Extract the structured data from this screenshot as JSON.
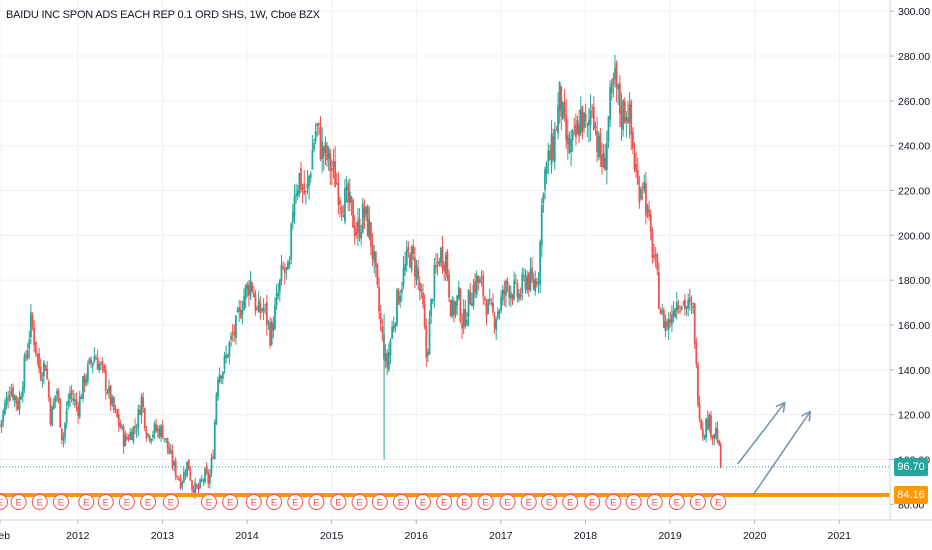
{
  "chart_data": {
    "type": "candlestick",
    "title": "BAIDU INC SPON ADS EACH REP 0.1 ORD SHS, 1W, Cboe BZX",
    "x_ticks": [
      "Feb",
      "2012",
      "2013",
      "2014",
      "2015",
      "2016",
      "2017",
      "2018",
      "2019",
      "2020",
      "2021"
    ],
    "y_ticks": [
      80,
      100,
      120,
      140,
      160,
      180,
      200,
      220,
      240,
      260,
      280,
      300
    ],
    "y_tick_labels": [
      "80.00",
      "100.00",
      "120.00",
      "140.00",
      "160.00",
      "180.00",
      "200.00",
      "220.00",
      "240.00",
      "260.00",
      "280.00",
      "300.00"
    ],
    "ylim": [
      73,
      305
    ],
    "xlim_years": [
      2011.08,
      2021.6
    ],
    "up_color": "#26a69a",
    "down_color": "#ef5350",
    "grid": true,
    "price_path": [
      [
        2011.08,
        115
      ],
      [
        2011.2,
        133
      ],
      [
        2011.3,
        124
      ],
      [
        2011.45,
        162
      ],
      [
        2011.55,
        139
      ],
      [
        2011.62,
        143
      ],
      [
        2011.68,
        118
      ],
      [
        2011.75,
        132
      ],
      [
        2011.82,
        108
      ],
      [
        2011.9,
        130
      ],
      [
        2012.0,
        123
      ],
      [
        2012.08,
        136
      ],
      [
        2012.2,
        147
      ],
      [
        2012.3,
        138
      ],
      [
        2012.42,
        122
      ],
      [
        2012.5,
        115
      ],
      [
        2012.55,
        108
      ],
      [
        2012.7,
        116
      ],
      [
        2012.75,
        128
      ],
      [
        2012.82,
        111
      ],
      [
        2012.9,
        113
      ],
      [
        2013.0,
        113
      ],
      [
        2013.08,
        103
      ],
      [
        2013.15,
        95
      ],
      [
        2013.22,
        90
      ],
      [
        2013.3,
        99
      ],
      [
        2013.35,
        88
      ],
      [
        2013.42,
        86
      ],
      [
        2013.5,
        93
      ],
      [
        2013.55,
        90
      ],
      [
        2013.6,
        104
      ],
      [
        2013.65,
        139
      ],
      [
        2013.72,
        141
      ],
      [
        2013.8,
        152
      ],
      [
        2013.88,
        160
      ],
      [
        2013.95,
        172
      ],
      [
        2014.05,
        180
      ],
      [
        2014.12,
        165
      ],
      [
        2014.2,
        168
      ],
      [
        2014.28,
        155
      ],
      [
        2014.35,
        170
      ],
      [
        2014.42,
        184
      ],
      [
        2014.5,
        182
      ],
      [
        2014.55,
        220
      ],
      [
        2014.62,
        226
      ],
      [
        2014.7,
        216
      ],
      [
        2014.78,
        240
      ],
      [
        2014.82,
        249
      ],
      [
        2014.88,
        238
      ],
      [
        2014.95,
        234
      ],
      [
        2015.05,
        225
      ],
      [
        2015.12,
        216
      ],
      [
        2015.2,
        214
      ],
      [
        2015.3,
        201
      ],
      [
        2015.38,
        210
      ],
      [
        2015.45,
        202
      ],
      [
        2015.5,
        188
      ],
      [
        2015.58,
        159
      ],
      [
        2015.65,
        140
      ],
      [
        2015.7,
        155
      ],
      [
        2015.78,
        172
      ],
      [
        2015.85,
        183
      ],
      [
        2015.92,
        192
      ],
      [
        2016.0,
        185
      ],
      [
        2016.08,
        166
      ],
      [
        2016.12,
        145
      ],
      [
        2016.2,
        178
      ],
      [
        2016.28,
        192
      ],
      [
        2016.35,
        190
      ],
      [
        2016.42,
        165
      ],
      [
        2016.5,
        172
      ],
      [
        2016.55,
        160
      ],
      [
        2016.65,
        175
      ],
      [
        2016.72,
        180
      ],
      [
        2016.78,
        176
      ],
      [
        2016.85,
        167
      ],
      [
        2016.92,
        163
      ],
      [
        2017.0,
        170
      ],
      [
        2017.08,
        178
      ],
      [
        2017.15,
        175
      ],
      [
        2017.22,
        173
      ],
      [
        2017.3,
        182
      ],
      [
        2017.38,
        177
      ],
      [
        2017.45,
        185
      ],
      [
        2017.5,
        225
      ],
      [
        2017.55,
        231
      ],
      [
        2017.62,
        240
      ],
      [
        2017.7,
        262
      ],
      [
        2017.75,
        246
      ],
      [
        2017.8,
        238
      ],
      [
        2017.88,
        242
      ],
      [
        2017.95,
        254
      ],
      [
        2018.02,
        244
      ],
      [
        2018.08,
        262
      ],
      [
        2018.15,
        238
      ],
      [
        2018.22,
        230
      ],
      [
        2018.28,
        255
      ],
      [
        2018.35,
        268
      ],
      [
        2018.42,
        254
      ],
      [
        2018.5,
        258
      ],
      [
        2018.55,
        242
      ],
      [
        2018.62,
        220
      ],
      [
        2018.68,
        227
      ],
      [
        2018.75,
        203
      ],
      [
        2018.82,
        188
      ],
      [
        2018.9,
        163
      ],
      [
        2018.98,
        160
      ],
      [
        2019.05,
        170
      ],
      [
        2019.12,
        172
      ],
      [
        2019.2,
        168
      ],
      [
        2019.28,
        165
      ],
      [
        2019.32,
        132
      ],
      [
        2019.38,
        112
      ],
      [
        2019.45,
        118
      ],
      [
        2019.5,
        112
      ],
      [
        2019.55,
        113
      ],
      [
        2019.6,
        96.7
      ]
    ],
    "horizontal_lines": [
      {
        "value": 96.7,
        "label": "96.70",
        "color": "#26a69a",
        "style": "dotted"
      },
      {
        "value": 84.16,
        "label": "84.16",
        "color": "#ff9800",
        "style": "solid"
      }
    ],
    "arrows": [
      {
        "from": [
          2019.8,
          98
        ],
        "to": [
          2020.35,
          125
        ],
        "color": "#7896a8"
      },
      {
        "from": [
          2019.98,
          84
        ],
        "to": [
          2020.65,
          121
        ],
        "color": "#7896a8"
      }
    ],
    "earnings_markers": {
      "label": "E",
      "years": [
        2011.08,
        2011.3,
        2011.55,
        2011.8,
        2012.1,
        2012.33,
        2012.58,
        2012.83,
        2013.1,
        2013.55,
        2013.8,
        2014.08,
        2014.32,
        2014.57,
        2014.82,
        2015.08,
        2015.33,
        2015.57,
        2015.82,
        2016.08,
        2016.33,
        2016.57,
        2016.82,
        2017.08,
        2017.33,
        2017.57,
        2017.82,
        2018.08,
        2018.33,
        2018.57,
        2018.82,
        2019.08,
        2019.33,
        2019.57
      ]
    }
  }
}
